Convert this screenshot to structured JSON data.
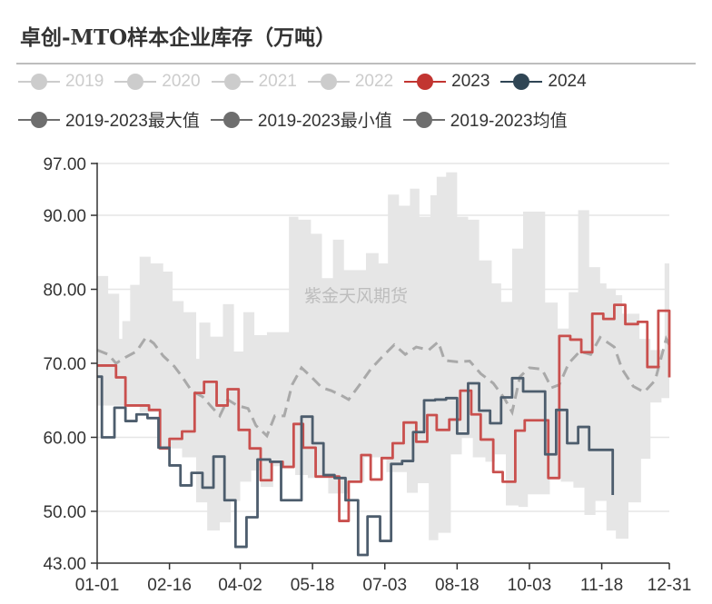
{
  "title": "卓创-MTO样本企业库存（万吨）",
  "watermark": "紫金天风期货",
  "legend": [
    {
      "label": "2019",
      "color": "#cccccc",
      "text_color": "#cccccc",
      "active": false
    },
    {
      "label": "2020",
      "color": "#cccccc",
      "text_color": "#cccccc",
      "active": false
    },
    {
      "label": "2021",
      "color": "#cccccc",
      "text_color": "#cccccc",
      "active": false
    },
    {
      "label": "2022",
      "color": "#cccccc",
      "text_color": "#cccccc",
      "active": false
    },
    {
      "label": "2023",
      "color": "#c23531",
      "text_color": "#333333",
      "active": true
    },
    {
      "label": "2024",
      "color": "#2f4554",
      "text_color": "#333333",
      "active": true
    },
    {
      "label": "2019-2023最大值",
      "color": "#6e6e6e",
      "text_color": "#333333",
      "active": true
    },
    {
      "label": "2019-2023最小值",
      "color": "#6e6e6e",
      "text_color": "#333333",
      "active": true
    },
    {
      "label": "2019-2023均值",
      "color": "#6e6e6e",
      "text_color": "#333333",
      "active": true
    }
  ],
  "chart_data": {
    "type": "line",
    "title": "卓创-MTO样本企业库存（万吨）",
    "xlabel": "",
    "ylabel": "",
    "ylim": [
      43,
      97
    ],
    "yticks": [
      "97.00",
      "90.00",
      "80.00",
      "70.00",
      "60.00",
      "50.00",
      "43.00"
    ],
    "ytick_values": [
      97,
      90,
      80,
      70,
      60,
      50,
      43
    ],
    "xticks": [
      "01-01",
      "02-16",
      "04-02",
      "05-18",
      "07-03",
      "08-18",
      "10-03",
      "11-18",
      "12-31"
    ],
    "grid": true,
    "legend_position": "top",
    "band_color": "#e6e6e6",
    "series": [
      {
        "name": "2019-2023最大值",
        "style": "step-band-upper",
        "color": "#e6e6e6",
        "points": [
          [
            "01-01",
            81.8
          ],
          [
            "01-08",
            79.4
          ],
          [
            "01-15",
            73.3
          ],
          [
            "01-17",
            75.7
          ],
          [
            "01-22",
            80.6
          ],
          [
            "01-28",
            84.4
          ],
          [
            "02-04",
            83.5
          ],
          [
            "02-12",
            82.4
          ],
          [
            "02-18",
            78.4
          ],
          [
            "02-25",
            76.9
          ],
          [
            "03-05",
            70.6
          ],
          [
            "03-07",
            75.5
          ],
          [
            "03-14",
            73.6
          ],
          [
            "03-22",
            78.0
          ],
          [
            "03-29",
            71.6
          ],
          [
            "04-04",
            76.9
          ],
          [
            "04-11",
            73.8
          ],
          [
            "04-19",
            74.2
          ],
          [
            "05-03",
            89.8
          ],
          [
            "05-09",
            89.4
          ],
          [
            "05-17",
            87.5
          ],
          [
            "05-24",
            81.5
          ],
          [
            "05-31",
            86.7
          ],
          [
            "06-07",
            82.6
          ],
          [
            "06-21",
            84.9
          ],
          [
            "06-29",
            83.5
          ],
          [
            "07-05",
            92.8
          ],
          [
            "07-12",
            91.3
          ],
          [
            "07-19",
            93.6
          ],
          [
            "07-25",
            89.8
          ],
          [
            "08-01",
            92.7
          ],
          [
            "08-05",
            95.2
          ],
          [
            "08-11",
            95.8
          ],
          [
            "08-18",
            89.8
          ],
          [
            "08-25",
            89.4
          ],
          [
            "09-01",
            83.9
          ],
          [
            "09-09",
            80.8
          ],
          [
            "09-15",
            78.3
          ],
          [
            "09-22",
            85.5
          ],
          [
            "09-29",
            90.5
          ],
          [
            "10-13",
            78.2
          ],
          [
            "10-21",
            74.7
          ],
          [
            "10-28",
            79.6
          ],
          [
            "11-03",
            90.7
          ],
          [
            "11-10",
            83.0
          ],
          [
            "11-17",
            80.8
          ],
          [
            "11-21",
            80.1
          ],
          [
            "11-27",
            79.2
          ],
          [
            "12-01",
            76.7
          ],
          [
            "12-12",
            73.3
          ],
          [
            "12-19",
            71.8
          ],
          [
            "12-28",
            83.5
          ],
          [
            "12-31",
            83.5
          ]
        ]
      },
      {
        "name": "2019-2023最小值",
        "style": "step-band-lower",
        "color": "#e6e6e6",
        "points": [
          [
            "01-01",
            64.3
          ],
          [
            "01-28",
            63.4
          ],
          [
            "02-09",
            58.5
          ],
          [
            "02-24",
            57.3
          ],
          [
            "03-05",
            51.2
          ],
          [
            "03-12",
            47.4
          ],
          [
            "03-20",
            48.5
          ],
          [
            "03-27",
            51.4
          ],
          [
            "04-02",
            54.0
          ],
          [
            "04-09",
            55.5
          ],
          [
            "04-15",
            53.3
          ],
          [
            "04-23",
            56.1
          ],
          [
            "05-07",
            54.9
          ],
          [
            "05-15",
            54.5
          ],
          [
            "05-28",
            52.4
          ],
          [
            "06-10",
            54.0
          ],
          [
            "06-20",
            57.3
          ],
          [
            "07-04",
            55.3
          ],
          [
            "07-17",
            52.5
          ],
          [
            "07-24",
            53.8
          ],
          [
            "07-31",
            46.1
          ],
          [
            "08-06",
            47.1
          ],
          [
            "08-14",
            57.7
          ],
          [
            "08-21",
            60.0
          ],
          [
            "08-28",
            57.3
          ],
          [
            "09-05",
            56.7
          ],
          [
            "09-11",
            57.7
          ],
          [
            "09-18",
            50.8
          ],
          [
            "09-26",
            50.6
          ],
          [
            "10-02",
            52.3
          ],
          [
            "10-16",
            54.4
          ],
          [
            "10-23",
            54.0
          ],
          [
            "10-31",
            53.2
          ],
          [
            "11-07",
            49.5
          ],
          [
            "11-14",
            51.4
          ],
          [
            "11-21",
            47.4
          ],
          [
            "11-27",
            46.3
          ],
          [
            "12-05",
            51.2
          ],
          [
            "12-13",
            57.1
          ],
          [
            "12-19",
            64.7
          ],
          [
            "12-26",
            65.3
          ],
          [
            "12-31",
            65.3
          ]
        ]
      },
      {
        "name": "2019-2023均值",
        "style": "dashed",
        "color": "#a9a9a9",
        "points": [
          [
            "01-01",
            71.8
          ],
          [
            "01-08",
            71.2
          ],
          [
            "01-13",
            70.0
          ],
          [
            "01-19",
            70.8
          ],
          [
            "01-26",
            71.6
          ],
          [
            "02-01",
            73.5
          ],
          [
            "02-06",
            72.7
          ],
          [
            "02-12",
            71.0
          ],
          [
            "02-19",
            69.6
          ],
          [
            "02-24",
            68.2
          ],
          [
            "03-02",
            66.3
          ],
          [
            "03-09",
            65.5
          ],
          [
            "03-14",
            64.3
          ],
          [
            "03-20",
            62.9
          ],
          [
            "03-25",
            65.1
          ],
          [
            "03-31",
            64.3
          ],
          [
            "04-07",
            63.9
          ],
          [
            "04-12",
            61.6
          ],
          [
            "04-19",
            60.2
          ],
          [
            "04-24",
            62.9
          ],
          [
            "04-30",
            62.9
          ],
          [
            "05-05",
            67.1
          ],
          [
            "05-11",
            69.4
          ],
          [
            "05-18",
            68.0
          ],
          [
            "05-24",
            66.7
          ],
          [
            "05-30",
            66.3
          ],
          [
            "06-05",
            65.7
          ],
          [
            "06-10",
            65.1
          ],
          [
            "06-17",
            67.1
          ],
          [
            "06-24",
            69.2
          ],
          [
            "07-01",
            70.8
          ],
          [
            "07-09",
            72.5
          ],
          [
            "07-16",
            71.2
          ],
          [
            "07-23",
            72.2
          ],
          [
            "07-31",
            71.8
          ],
          [
            "08-06",
            72.9
          ],
          [
            "08-10",
            70.4
          ],
          [
            "08-18",
            70.2
          ],
          [
            "08-26",
            70.3
          ],
          [
            "09-02",
            68.6
          ],
          [
            "09-10",
            67.3
          ],
          [
            "09-17",
            65.3
          ],
          [
            "09-22",
            63.4
          ],
          [
            "09-27",
            68.2
          ],
          [
            "10-03",
            69.4
          ],
          [
            "10-11",
            69.2
          ],
          [
            "10-17",
            66.7
          ],
          [
            "10-22",
            67.1
          ],
          [
            "10-28",
            70.0
          ],
          [
            "11-04",
            71.6
          ],
          [
            "11-11",
            71.2
          ],
          [
            "11-17",
            73.5
          ],
          [
            "11-26",
            72.2
          ],
          [
            "12-01",
            69.2
          ],
          [
            "12-08",
            66.9
          ],
          [
            "12-15",
            66.1
          ],
          [
            "12-22",
            67.7
          ],
          [
            "12-29",
            73.3
          ],
          [
            "12-31",
            72.5
          ]
        ]
      },
      {
        "name": "2023",
        "style": "step",
        "color": "#c9504e",
        "points": [
          [
            "01-01",
            69.7
          ],
          [
            "01-13",
            68.1
          ],
          [
            "01-19",
            64.3
          ],
          [
            "02-03",
            63.7
          ],
          [
            "02-10",
            58.5
          ],
          [
            "02-16",
            59.8
          ],
          [
            "02-24",
            60.8
          ],
          [
            "03-04",
            66.0
          ],
          [
            "03-10",
            67.5
          ],
          [
            "03-18",
            64.3
          ],
          [
            "03-25",
            66.5
          ],
          [
            "04-01",
            61.0
          ],
          [
            "04-08",
            58.5
          ],
          [
            "04-15",
            54.2
          ],
          [
            "04-22",
            56.7
          ],
          [
            "04-29",
            56.0
          ],
          [
            "05-06",
            61.8
          ],
          [
            "05-12",
            58.6
          ],
          [
            "05-20",
            54.7
          ],
          [
            "06-04",
            48.7
          ],
          [
            "06-10",
            54.0
          ],
          [
            "06-18",
            57.6
          ],
          [
            "06-24",
            54.3
          ],
          [
            "07-01",
            57.2
          ],
          [
            "07-08",
            59.2
          ],
          [
            "07-15",
            62.0
          ],
          [
            "07-23",
            59.4
          ],
          [
            "07-30",
            63.0
          ],
          [
            "08-05",
            61.0
          ],
          [
            "08-13",
            62.4
          ],
          [
            "08-20",
            66.3
          ],
          [
            "08-27",
            63.1
          ],
          [
            "09-02",
            59.7
          ],
          [
            "09-10",
            55.3
          ],
          [
            "09-16",
            54.0
          ],
          [
            "09-24",
            60.9
          ],
          [
            "09-30",
            62.3
          ],
          [
            "10-15",
            54.5
          ],
          [
            "10-22",
            73.7
          ],
          [
            "10-29",
            73.2
          ],
          [
            "11-05",
            71.5
          ],
          [
            "11-12",
            76.7
          ],
          [
            "11-19",
            76.0
          ],
          [
            "11-26",
            77.9
          ],
          [
            "12-03",
            75.3
          ],
          [
            "12-11",
            75.6
          ],
          [
            "12-17",
            69.5
          ],
          [
            "12-24",
            77.1
          ],
          [
            "12-31",
            68.1
          ]
        ]
      },
      {
        "name": "2024",
        "style": "step",
        "color": "#4d5d6d",
        "points": [
          [
            "01-01",
            68.2
          ],
          [
            "01-04",
            60.0
          ],
          [
            "01-12",
            64.0
          ],
          [
            "01-19",
            62.2
          ],
          [
            "01-26",
            63.1
          ],
          [
            "02-02",
            62.6
          ],
          [
            "02-09",
            58.6
          ],
          [
            "02-16",
            56.2
          ],
          [
            "02-23",
            53.5
          ],
          [
            "03-02",
            55.2
          ],
          [
            "03-09",
            53.2
          ],
          [
            "03-16",
            57.4
          ],
          [
            "03-23",
            51.5
          ],
          [
            "03-30",
            45.2
          ],
          [
            "04-06",
            49.2
          ],
          [
            "04-13",
            57.0
          ],
          [
            "04-21",
            56.7
          ],
          [
            "04-28",
            51.5
          ],
          [
            "05-11",
            62.8
          ],
          [
            "05-18",
            59.2
          ],
          [
            "05-25",
            54.9
          ],
          [
            "06-01",
            54.5
          ],
          [
            "06-08",
            51.5
          ],
          [
            "06-16",
            44.1
          ],
          [
            "06-22",
            49.3
          ],
          [
            "06-30",
            46.0
          ],
          [
            "07-07",
            56.4
          ],
          [
            "07-14",
            56.8
          ],
          [
            "07-21",
            60.7
          ],
          [
            "07-28",
            65.0
          ],
          [
            "08-04",
            65.1
          ],
          [
            "08-11",
            65.3
          ],
          [
            "08-18",
            60.5
          ],
          [
            "08-25",
            67.3
          ],
          [
            "09-01",
            63.6
          ],
          [
            "09-08",
            61.9
          ],
          [
            "09-15",
            65.4
          ],
          [
            "09-22",
            68.0
          ],
          [
            "09-29",
            66.2
          ],
          [
            "10-13",
            57.7
          ],
          [
            "10-20",
            63.7
          ],
          [
            "10-27",
            59.2
          ],
          [
            "11-03",
            61.4
          ],
          [
            "11-10",
            58.3
          ],
          [
            "11-25",
            52.2
          ]
        ]
      }
    ]
  }
}
